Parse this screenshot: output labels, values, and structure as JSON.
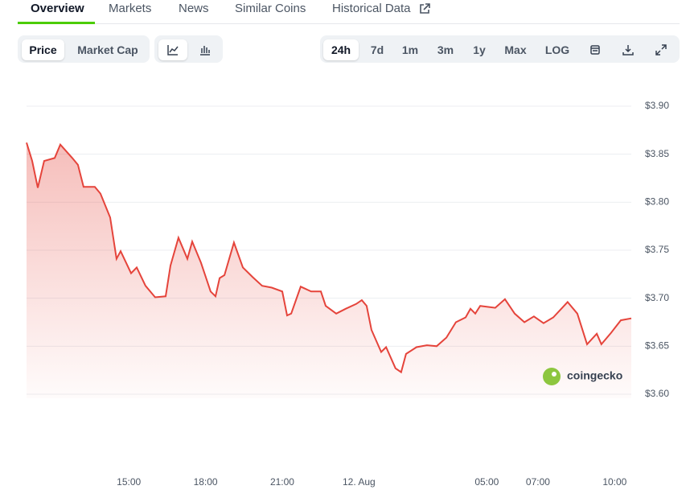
{
  "tabs": [
    "Overview",
    "Markets",
    "News",
    "Similar Coins",
    "Historical Data"
  ],
  "view_toggles": [
    "Price",
    "Market Cap"
  ],
  "ranges": [
    "24h",
    "7d",
    "1m",
    "3m",
    "1y",
    "Max",
    "LOG"
  ],
  "chart_data": {
    "type": "line",
    "watermark": "coingecko",
    "series": [
      {
        "color": "#e5443b",
        "x": [
          11.0,
          11.22,
          11.44,
          11.69,
          12.1,
          12.32,
          12.79,
          13.01,
          13.23,
          13.67,
          13.89,
          14.27,
          14.52,
          14.68,
          15.09,
          15.31,
          15.65,
          16.03,
          16.44,
          16.63,
          16.94,
          17.29,
          17.48,
          17.82,
          18.2,
          18.39,
          18.55,
          18.74,
          19.11,
          19.46,
          19.84,
          20.21,
          20.59,
          21.0,
          21.19,
          21.35,
          21.72,
          22.13,
          22.51,
          22.7,
          23.11,
          23.48,
          23.89,
          24.11,
          24.3,
          24.49,
          24.87,
          25.06,
          25.43,
          25.65,
          25.84,
          26.25,
          26.66,
          27.04,
          27.42,
          27.79,
          28.17,
          28.36,
          28.55,
          28.74,
          29.33,
          29.71,
          30.09,
          30.47,
          30.84,
          31.22,
          31.6,
          32.16,
          32.54,
          32.92,
          33.3,
          33.48,
          33.86,
          34.24,
          34.65
        ],
        "values": [
          3.862,
          3.843,
          3.815,
          3.843,
          3.846,
          3.86,
          3.846,
          3.839,
          3.816,
          3.816,
          3.809,
          3.784,
          3.741,
          3.749,
          3.726,
          3.732,
          3.713,
          3.701,
          3.702,
          3.734,
          3.763,
          3.741,
          3.759,
          3.737,
          3.707,
          3.702,
          3.721,
          3.724,
          3.758,
          3.732,
          3.722,
          3.713,
          3.711,
          3.707,
          3.682,
          3.684,
          3.712,
          3.707,
          3.707,
          3.692,
          3.684,
          3.689,
          3.694,
          3.698,
          3.692,
          3.667,
          3.644,
          3.649,
          3.627,
          3.623,
          3.642,
          3.649,
          3.651,
          3.65,
          3.659,
          3.675,
          3.68,
          3.689,
          3.684,
          3.692,
          3.69,
          3.699,
          3.684,
          3.675,
          3.681,
          3.674,
          3.68,
          3.696,
          3.684,
          3.652,
          3.663,
          3.652,
          3.664,
          3.677,
          3.679
        ]
      }
    ],
    "xlim": [
      11,
      34.65
    ],
    "xticks": [
      {
        "value": 15,
        "label": "15:00"
      },
      {
        "value": 18,
        "label": "18:00"
      },
      {
        "value": 21,
        "label": "21:00"
      },
      {
        "value": 24,
        "label": "12. Aug"
      },
      {
        "value": 29,
        "label": "05:00"
      },
      {
        "value": 31,
        "label": "07:00"
      },
      {
        "value": 34,
        "label": "10:00"
      }
    ],
    "ylim": [
      3.6,
      3.9
    ],
    "yticks": [
      {
        "value": 3.6,
        "label": "$3.60"
      },
      {
        "value": 3.65,
        "label": "$3.65"
      },
      {
        "value": 3.7,
        "label": "$3.70"
      },
      {
        "value": 3.75,
        "label": "$3.75"
      },
      {
        "value": 3.8,
        "label": "$3.80"
      },
      {
        "value": 3.85,
        "label": "$3.85"
      },
      {
        "value": 3.9,
        "label": "$3.90"
      }
    ],
    "grid": true
  }
}
